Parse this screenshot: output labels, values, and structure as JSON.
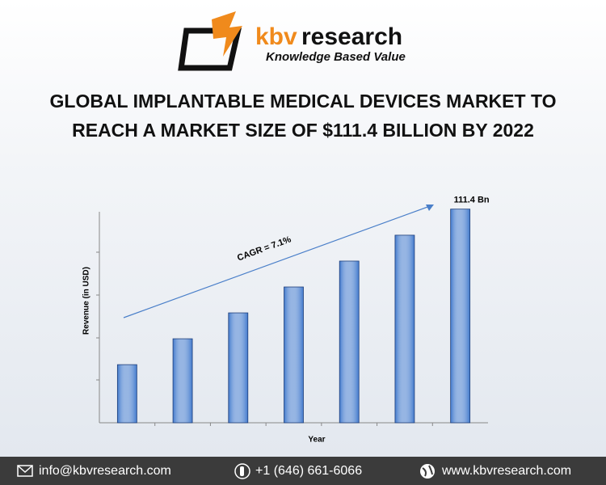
{
  "header": {
    "brand": "kbv",
    "brand_rest": "research",
    "tagline": "Knowledge Based Value",
    "title_lines": [
      "GLOBAL IMPLANTABLE MEDICAL DEVICES MARKET TO",
      "REACH A MARKET SIZE OF $111.4 BILLION BY 2022"
    ]
  },
  "chart_data": {
    "type": "bar",
    "x_label": "Year",
    "y_label": "Revenue (in USD)",
    "annotation": "CAGR = 7.1%",
    "categories": [
      null,
      null,
      null,
      null,
      null,
      null,
      null
    ],
    "values": [
      30.3,
      43.8,
      57.3,
      70.8,
      84.3,
      97.8,
      111.4
    ],
    "value_labels": [
      null,
      null,
      null,
      null,
      null,
      null,
      "111.4 Bn"
    ],
    "color": "#3f78cc",
    "ylim": [
      0,
      110
    ]
  },
  "footer": {
    "email": "info@kbvresearch.com",
    "phone": "+1 (646) 661-6066",
    "website": "www.kbvresearch.com"
  }
}
